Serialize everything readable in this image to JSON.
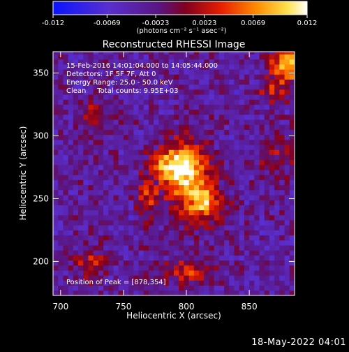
{
  "chart_data": {
    "type": "heatmap",
    "title": "Reconstructed RHESSI Image",
    "xlabel": "Heliocentric X (arcsec)",
    "ylabel": "Heliocentric Y (arcsec)",
    "xlim": [
      694,
      886
    ],
    "ylim": [
      173,
      367
    ],
    "xticks": [
      700,
      750,
      800,
      850
    ],
    "yticks": [
      200,
      250,
      300,
      350
    ],
    "colorbar": {
      "ticks": [
        "-0.012",
        "-0.0069",
        "-0.0023",
        "0.0023",
        "0.0069",
        "0.012"
      ],
      "range": [
        -0.012,
        0.012
      ],
      "unit_label": "(photons cm⁻² s⁻¹ asec⁻²)"
    },
    "annotations": [
      "15-Feb-2016 14:01:04.000 to 14:05:44.000",
      "Detectors: 1F 5F 7F, Att 0",
      "Energy Range: 25.0 - 50.0 keV",
      "Clean     Total counts: 9.95E+03",
      "Position of Peak = [878,354]"
    ],
    "peak": [
      878,
      354
    ],
    "sources": [
      {
        "x": 800,
        "y": 265,
        "sx": 12,
        "sy": 20,
        "amp": 0.012
      },
      {
        "x": 785,
        "y": 275,
        "sx": 10,
        "sy": 10,
        "amp": 0.01
      },
      {
        "x": 815,
        "y": 245,
        "sx": 10,
        "sy": 10,
        "amp": 0.008
      },
      {
        "x": 768,
        "y": 248,
        "sx": 6,
        "sy": 12,
        "amp": 0.007
      },
      {
        "x": 878,
        "y": 354,
        "sx": 9,
        "sy": 10,
        "amp": 0.013
      },
      {
        "x": 866,
        "y": 333,
        "sx": 8,
        "sy": 6,
        "amp": 0.006
      },
      {
        "x": 725,
        "y": 312,
        "sx": 8,
        "sy": 8,
        "amp": 0.006
      },
      {
        "x": 720,
        "y": 198,
        "sx": 10,
        "sy": 10,
        "amp": 0.005
      },
      {
        "x": 800,
        "y": 190,
        "sx": 16,
        "sy": 7,
        "amp": 0.006
      },
      {
        "x": 870,
        "y": 285,
        "sx": 10,
        "sy": 14,
        "amp": 0.004
      }
    ]
  },
  "footer": {
    "date": "18-May-2022 04:01"
  }
}
